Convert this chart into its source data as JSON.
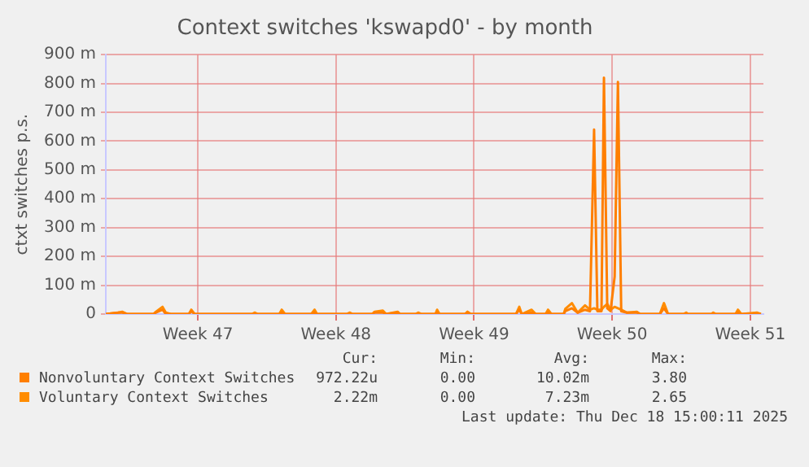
{
  "chart_data": {
    "type": "line",
    "title": "Context switches 'kswapd0' - by month",
    "ylabel": "ctxt switches p.s.",
    "x": [
      "2025-11-12T08:00",
      "2025-11-12T23:00",
      "2025-11-13T04:00",
      "2025-11-13T10:00",
      "2025-11-14T18:00",
      "2025-11-14T21:00",
      "2025-11-15T05:00",
      "2025-11-15T09:00",
      "2025-11-15T15:00",
      "2025-11-16T13:00",
      "2025-11-16T16:00",
      "2025-11-16T20:00",
      "2025-11-19T18:00",
      "2025-11-19T21:00",
      "2025-11-20T01:00",
      "2025-11-21T03:00",
      "2025-11-21T06:00",
      "2025-11-21T10:00",
      "2025-11-22T18:00",
      "2025-11-22T22:00",
      "2025-11-23T01:00",
      "2025-11-24T13:00",
      "2025-11-24T17:00",
      "2025-11-24T20:00",
      "2025-11-25T20:00",
      "2025-11-25T23:00",
      "2025-11-26T09:00",
      "2025-11-26T13:00",
      "2025-11-27T03:00",
      "2025-11-27T06:00",
      "2025-11-28T01:00",
      "2025-11-28T04:00",
      "2025-11-28T08:00",
      "2025-11-29T01:00",
      "2025-11-29T03:00",
      "2025-11-29T06:00",
      "2025-11-30T13:00",
      "2025-11-30T16:00",
      "2025-11-30T20:00",
      "2025-12-03T03:00",
      "2025-12-03T07:00",
      "2025-12-03T10:00",
      "2025-12-03T22:00",
      "2025-12-04T03:00",
      "2025-12-04T15:00",
      "2025-12-04T18:00",
      "2025-12-04T22:00",
      "2025-12-05T13:00",
      "2025-12-05T15:00",
      "2025-12-05T23:00",
      "2025-12-06T06:00",
      "2025-12-06T15:00",
      "2025-12-06T21:00",
      "2025-12-07T02:00",
      "2025-12-07T06:00",
      "2025-12-07T11:00",
      "2025-12-07T14:00",
      "2025-12-07T18:00",
      "2025-12-07T22:00",
      "2025-12-08T03:00",
      "2025-12-08T07:00",
      "2025-12-08T11:00",
      "2025-12-08T18:00",
      "2025-12-09T06:00",
      "2025-12-09T10:00",
      "2025-12-10T10:00",
      "2025-12-10T15:00",
      "2025-12-10T20:00",
      "2025-12-11T15:00",
      "2025-12-11T18:00",
      "2025-12-11T20:00",
      "2025-12-13T01:00",
      "2025-12-13T03:00",
      "2025-12-13T06:00",
      "2025-12-14T06:00",
      "2025-12-14T09:00",
      "2025-12-14T13:00",
      "2025-12-15T08:00",
      "2025-12-15T13:00"
    ],
    "xlim": [
      "2025-11-12T08:00",
      "2025-12-15T16:00"
    ],
    "xticks": [
      {
        "value": "2025-11-17",
        "label": "Week 47"
      },
      {
        "value": "2025-11-24",
        "label": "Week 48"
      },
      {
        "value": "2025-12-01",
        "label": "Week 49"
      },
      {
        "value": "2025-12-08",
        "label": "Week 50"
      },
      {
        "value": "2025-12-15",
        "label": "Week 51"
      }
    ],
    "ylim": [
      0,
      900
    ],
    "yticks": [
      {
        "value": 0,
        "label": "0"
      },
      {
        "value": 100,
        "label": "100 m"
      },
      {
        "value": 200,
        "label": "200 m"
      },
      {
        "value": 300,
        "label": "300 m"
      },
      {
        "value": 400,
        "label": "400 m"
      },
      {
        "value": 500,
        "label": "500 m"
      },
      {
        "value": 600,
        "label": "600 m"
      },
      {
        "value": 700,
        "label": "700 m"
      },
      {
        "value": 800,
        "label": "800 m"
      },
      {
        "value": 900,
        "label": "900 m"
      }
    ],
    "series": [
      {
        "name": "Nonvoluntary Context Switches",
        "color": "#ff7f00",
        "values": [
          0,
          5,
          5,
          0,
          0,
          5,
          15,
          0,
          0,
          0,
          10,
          0,
          0,
          0,
          0,
          0,
          5,
          0,
          0,
          5,
          0,
          0,
          0,
          0,
          0,
          5,
          5,
          0,
          5,
          0,
          0,
          0,
          0,
          0,
          5,
          0,
          0,
          5,
          0,
          0,
          15,
          0,
          5,
          0,
          0,
          5,
          0,
          0,
          10,
          20,
          5,
          15,
          10,
          640,
          10,
          10,
          820,
          20,
          10,
          130,
          805,
          10,
          5,
          5,
          0,
          0,
          20,
          0,
          0,
          0,
          0,
          0,
          0,
          0,
          0,
          5,
          0,
          0,
          0
        ]
      },
      {
        "name": "Voluntary Context Switches",
        "color": "#ff8c00",
        "values": [
          0,
          5,
          8,
          0,
          0,
          8,
          25,
          5,
          0,
          0,
          15,
          0,
          0,
          5,
          0,
          0,
          15,
          0,
          0,
          15,
          0,
          0,
          5,
          0,
          0,
          8,
          12,
          0,
          8,
          0,
          0,
          5,
          0,
          0,
          15,
          0,
          0,
          8,
          0,
          0,
          25,
          0,
          15,
          0,
          0,
          15,
          0,
          0,
          18,
          38,
          5,
          30,
          15,
          20,
          15,
          15,
          25,
          35,
          15,
          25,
          20,
          15,
          5,
          8,
          0,
          0,
          38,
          0,
          0,
          5,
          0,
          0,
          5,
          0,
          0,
          15,
          0,
          5,
          0
        ]
      }
    ],
    "grid": true,
    "legend": "bottom",
    "marker": "none",
    "line_style": "solid",
    "annotations": [
      "Cur:",
      "Min:",
      "Avg:",
      "Max:",
      "972.22u",
      "0.00",
      "10.02m",
      "3.80",
      "2.22m",
      "0.00",
      "7.23m",
      "2.65",
      "Last update: Thu Dec 18 15:00:11 2025"
    ]
  }
}
